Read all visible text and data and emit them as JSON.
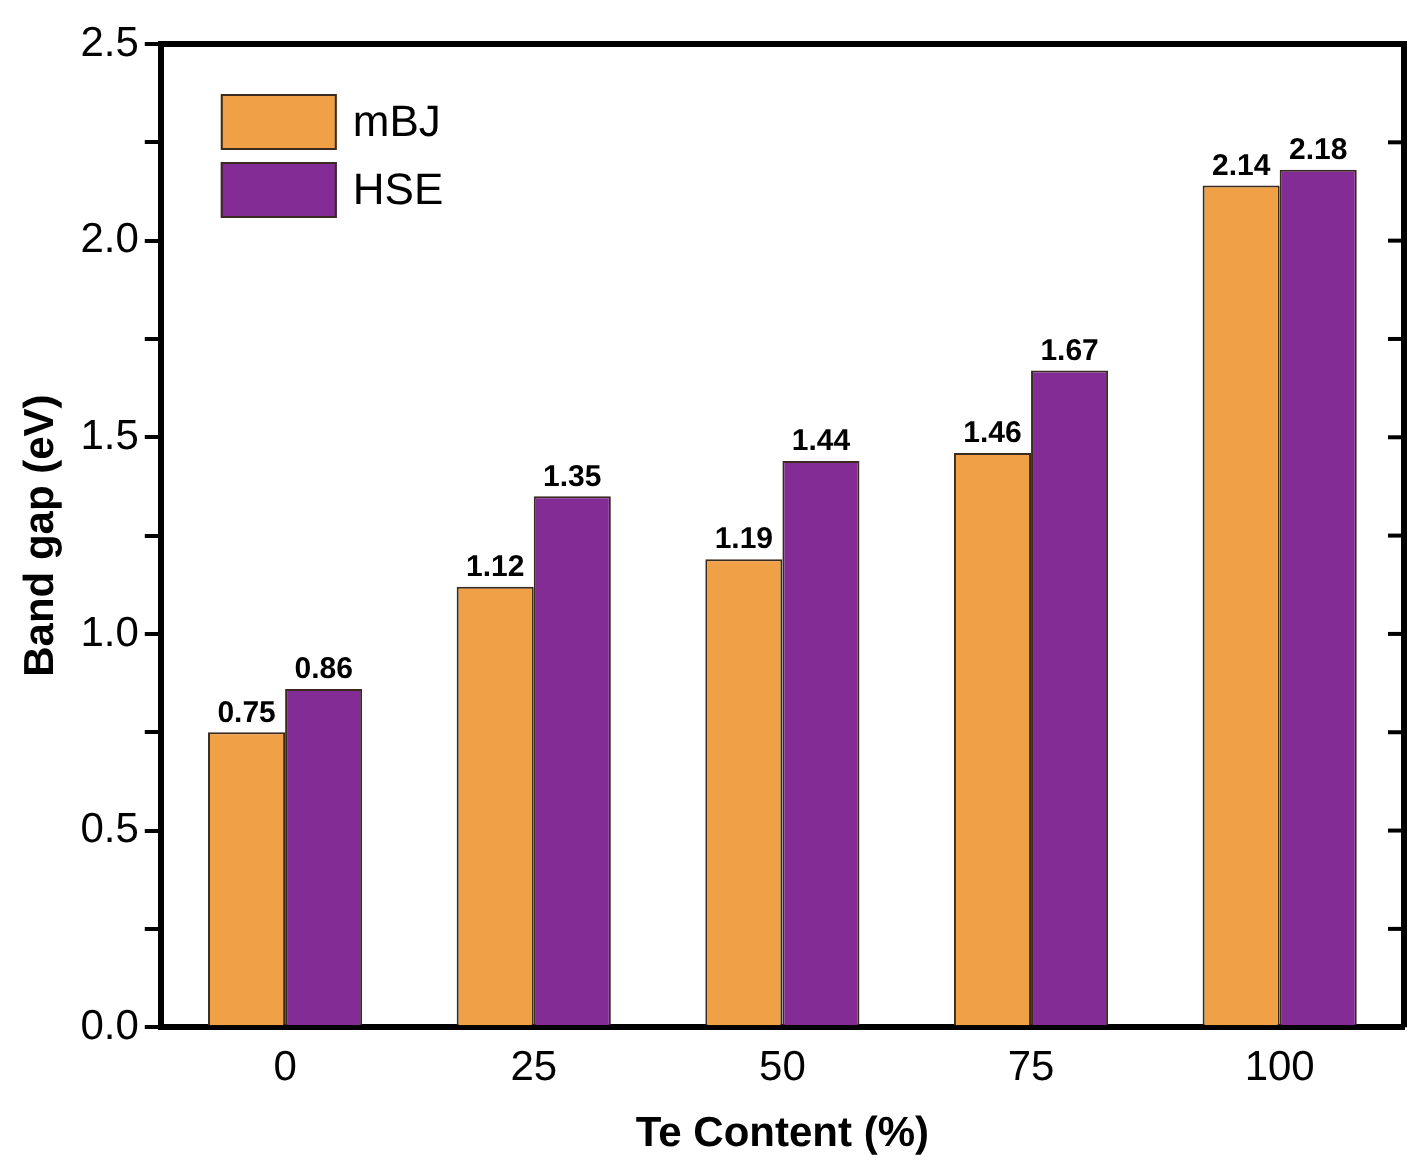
{
  "chart_data": {
    "type": "bar",
    "xlabel": "Te Content (%)",
    "ylabel": "Band gap (eV)",
    "categories": [
      "0",
      "25",
      "50",
      "75",
      "100"
    ],
    "series": [
      {
        "name": "mBJ",
        "color": "#f0a045",
        "values": [
          0.75,
          1.12,
          1.19,
          1.46,
          2.14
        ]
      },
      {
        "name": "HSE",
        "color": "#842c96",
        "values": [
          0.86,
          1.35,
          1.44,
          1.67,
          2.18
        ]
      }
    ],
    "ylim": [
      0,
      2.5
    ],
    "yticks": [
      {
        "value": 0,
        "label": "0.0"
      },
      {
        "value": 0.25,
        "label": null
      },
      {
        "value": 0.5,
        "label": "0.5"
      },
      {
        "value": 0.75,
        "label": null
      },
      {
        "value": 1,
        "label": "1.0"
      },
      {
        "value": 1.25,
        "label": null
      },
      {
        "value": 1.5,
        "label": "1.5"
      },
      {
        "value": 1.75,
        "label": null
      },
      {
        "value": 2,
        "label": "2.0"
      },
      {
        "value": 2.25,
        "label": null
      },
      {
        "value": 2.5,
        "label": "2.5"
      }
    ],
    "grid": false,
    "legend": "top left",
    "data_labels": true
  }
}
